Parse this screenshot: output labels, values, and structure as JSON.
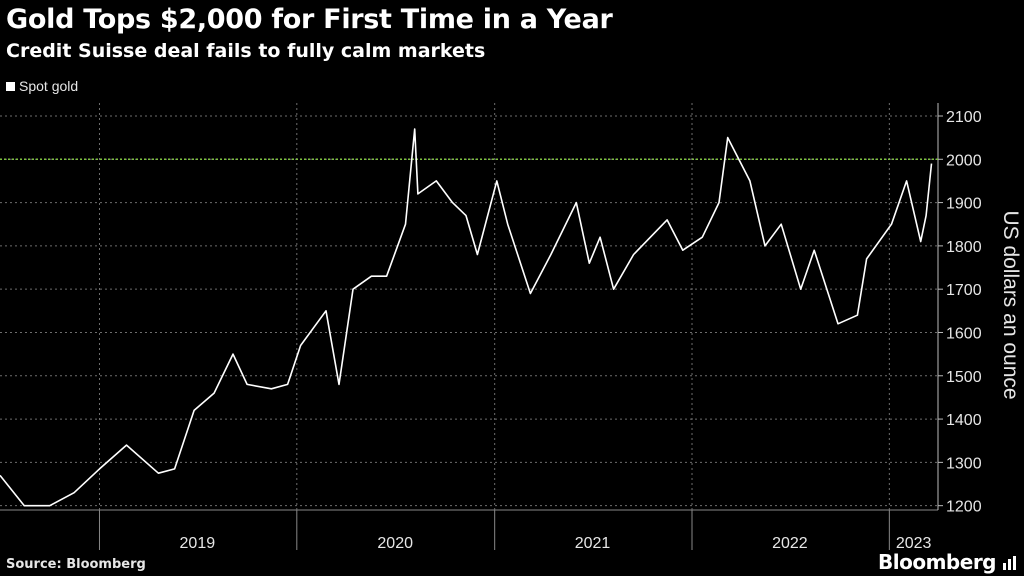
{
  "header": {
    "title": "Gold Tops $2,000 for First Time in a Year",
    "subtitle": "Credit Suisse deal fails to fully calm markets"
  },
  "legend": {
    "label": "Spot gold",
    "color": "#ffffff"
  },
  "footer": {
    "source": "Source: Bloomberg",
    "brand": "Bloomberg"
  },
  "colors": {
    "background": "#000000",
    "series": "#ffffff",
    "reference_line": "#7fc241",
    "grid": "#6e6e6e"
  },
  "chart_data": {
    "type": "line",
    "title": "Gold Tops $2,000 for First Time in a Year",
    "subtitle": "Credit Suisse deal fails to fully calm markets",
    "ylabel": "US dollars an ounce",
    "xlabel": "",
    "ylim": [
      1190,
      2130
    ],
    "yticks": [
      1200,
      1300,
      1400,
      1500,
      1600,
      1700,
      1800,
      1900,
      2000,
      2100
    ],
    "x_tick_labels": [
      "2019",
      "2020",
      "2021",
      "2022",
      "2023"
    ],
    "grid": true,
    "y_axis_side": "right",
    "legend_position": "top-left",
    "reference_lines": [
      {
        "y": 2000,
        "color": "#7fc241",
        "style": "dotted"
      }
    ],
    "series": [
      {
        "name": "Spot gold",
        "x": [
          "2018-07-01",
          "2018-08-15",
          "2018-10-01",
          "2018-11-15",
          "2019-01-01",
          "2019-02-20",
          "2019-04-20",
          "2019-05-20",
          "2019-06-25",
          "2019-08-01",
          "2019-09-05",
          "2019-10-01",
          "2019-11-15",
          "2019-12-15",
          "2020-01-08",
          "2020-02-24",
          "2020-03-19",
          "2020-04-14",
          "2020-05-18",
          "2020-06-15",
          "2020-07-20",
          "2020-08-06",
          "2020-08-12",
          "2020-09-15",
          "2020-10-15",
          "2020-11-09",
          "2020-11-30",
          "2021-01-05",
          "2021-01-25",
          "2021-03-08",
          "2021-04-15",
          "2021-06-01",
          "2021-06-25",
          "2021-07-15",
          "2021-08-09",
          "2021-09-15",
          "2021-11-16",
          "2021-12-15",
          "2022-01-20",
          "2022-02-20",
          "2022-03-08",
          "2022-04-18",
          "2022-05-16",
          "2022-06-15",
          "2022-07-21",
          "2022-08-15",
          "2022-09-28",
          "2022-11-03",
          "2022-11-20",
          "2023-01-05",
          "2023-02-02",
          "2023-02-28",
          "2023-03-10",
          "2023-03-20"
        ],
        "y": [
          1270,
          1200,
          1200,
          1230,
          1285,
          1340,
          1275,
          1285,
          1420,
          1460,
          1550,
          1480,
          1470,
          1480,
          1570,
          1650,
          1480,
          1700,
          1730,
          1730,
          1850,
          2070,
          1920,
          1950,
          1900,
          1870,
          1780,
          1950,
          1850,
          1690,
          1780,
          1900,
          1760,
          1820,
          1700,
          1780,
          1860,
          1790,
          1820,
          1900,
          2050,
          1950,
          1800,
          1850,
          1700,
          1790,
          1620,
          1640,
          1770,
          1850,
          1950,
          1810,
          1870,
          1990
        ]
      }
    ]
  }
}
